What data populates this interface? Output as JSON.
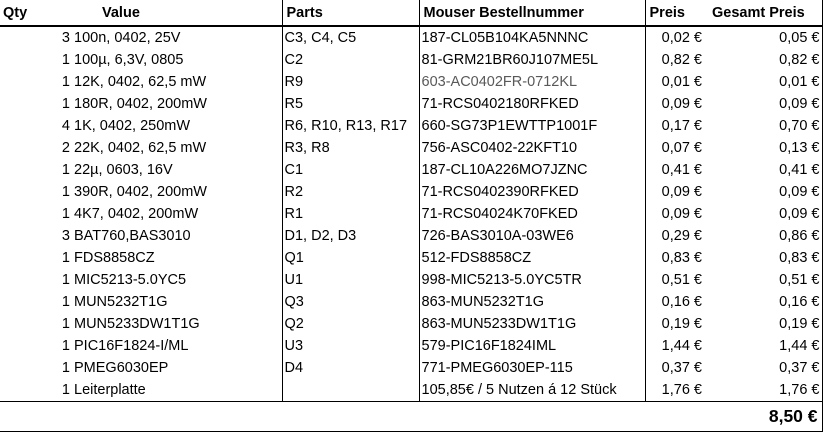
{
  "headers": {
    "qty": "Qty",
    "value": "Value",
    "parts": "Parts",
    "mouser": "Mouser Bestellnummer",
    "preis": "Preis",
    "gesamt": "Gesamt Preis"
  },
  "rows": [
    {
      "qty": "3",
      "value": "100n, 0402, 25V",
      "parts": "C3, C4, C5",
      "mouser": "187-CL05B104KA5NNNC",
      "preis": "0,02 €",
      "gesamt": "0,05 €"
    },
    {
      "qty": "1",
      "value": "100µ, 6,3V, 0805",
      "parts": "C2",
      "mouser": "81-GRM21BR60J107ME5L",
      "preis": "0,82 €",
      "gesamt": "0,82 €"
    },
    {
      "qty": "1",
      "value": "12K, 0402, 62,5 mW",
      "parts": "R9",
      "mouser": "603-AC0402FR-0712KL",
      "preis": "0,01 €",
      "gesamt": "0,01 €"
    },
    {
      "qty": "1",
      "value": "180R, 0402, 200mW",
      "parts": "R5",
      "mouser": "71-RCS0402180RFKED",
      "preis": "0,09 €",
      "gesamt": "0,09 €"
    },
    {
      "qty": "4",
      "value": "1K, 0402, 250mW",
      "parts": "R6, R10, R13, R17",
      "mouser": "660-SG73P1EWTTP1001F",
      "preis": "0,17 €",
      "gesamt": "0,70 €"
    },
    {
      "qty": "2",
      "value": "22K, 0402, 62,5 mW",
      "parts": "R3, R8",
      "mouser": "756-ASC0402-22KFT10",
      "preis": "0,07 €",
      "gesamt": "0,13 €"
    },
    {
      "qty": "1",
      "value": "22µ, 0603, 16V",
      "parts": "C1",
      "mouser": "187-CL10A226MO7JZNC",
      "preis": "0,41 €",
      "gesamt": "0,41 €"
    },
    {
      "qty": "1",
      "value": "390R, 0402, 200mW",
      "parts": "R2",
      "mouser": "71-RCS0402390RFKED",
      "preis": "0,09 €",
      "gesamt": "0,09 €"
    },
    {
      "qty": "1",
      "value": "4K7, 0402, 200mW",
      "parts": "R1",
      "mouser": "71-RCS04024K70FKED",
      "preis": "0,09 €",
      "gesamt": "0,09 €"
    },
    {
      "qty": "3",
      "value": "BAT760,BAS3010",
      "parts": "D1, D2, D3",
      "mouser": "726-BAS3010A-03WE6",
      "preis": "0,29 €",
      "gesamt": "0,86 €"
    },
    {
      "qty": "1",
      "value": "FDS8858CZ",
      "parts": "Q1",
      "mouser": "512-FDS8858CZ",
      "preis": "0,83 €",
      "gesamt": "0,83 €"
    },
    {
      "qty": "1",
      "value": "MIC5213-5.0YC5",
      "parts": "U1",
      "mouser": "998-MIC5213-5.0YC5TR",
      "preis": "0,51 €",
      "gesamt": "0,51 €"
    },
    {
      "qty": "1",
      "value": "MUN5232T1G",
      "parts": "Q3",
      "mouser": "863-MUN5232T1G",
      "preis": "0,16 €",
      "gesamt": "0,16 €"
    },
    {
      "qty": "1",
      "value": "MUN5233DW1T1G",
      "parts": "Q2",
      "mouser": "863-MUN5233DW1T1G",
      "preis": "0,19 €",
      "gesamt": "0,19 €"
    },
    {
      "qty": "1",
      "value": "PIC16F1824-I/ML",
      "parts": "U3",
      "mouser": "579-PIC16F1824IML",
      "preis": "1,44 €",
      "gesamt": "1,44 €"
    },
    {
      "qty": "1",
      "value": "PMEG6030EP",
      "parts": "D4",
      "mouser": "771-PMEG6030EP-115",
      "preis": "0,37 €",
      "gesamt": "0,37 €"
    },
    {
      "qty": "1",
      "value": "Leiterplatte",
      "parts": "",
      "mouser": "105,85€ / 5 Nutzen á 12 Stück",
      "preis": "1,76 €",
      "gesamt": "1,76 €"
    }
  ],
  "muted_row_index": 2,
  "total": "8,50 €",
  "colors": {
    "text": "#000000",
    "muted_text": "#595959",
    "grid": "#000000",
    "background": "#ffffff"
  }
}
